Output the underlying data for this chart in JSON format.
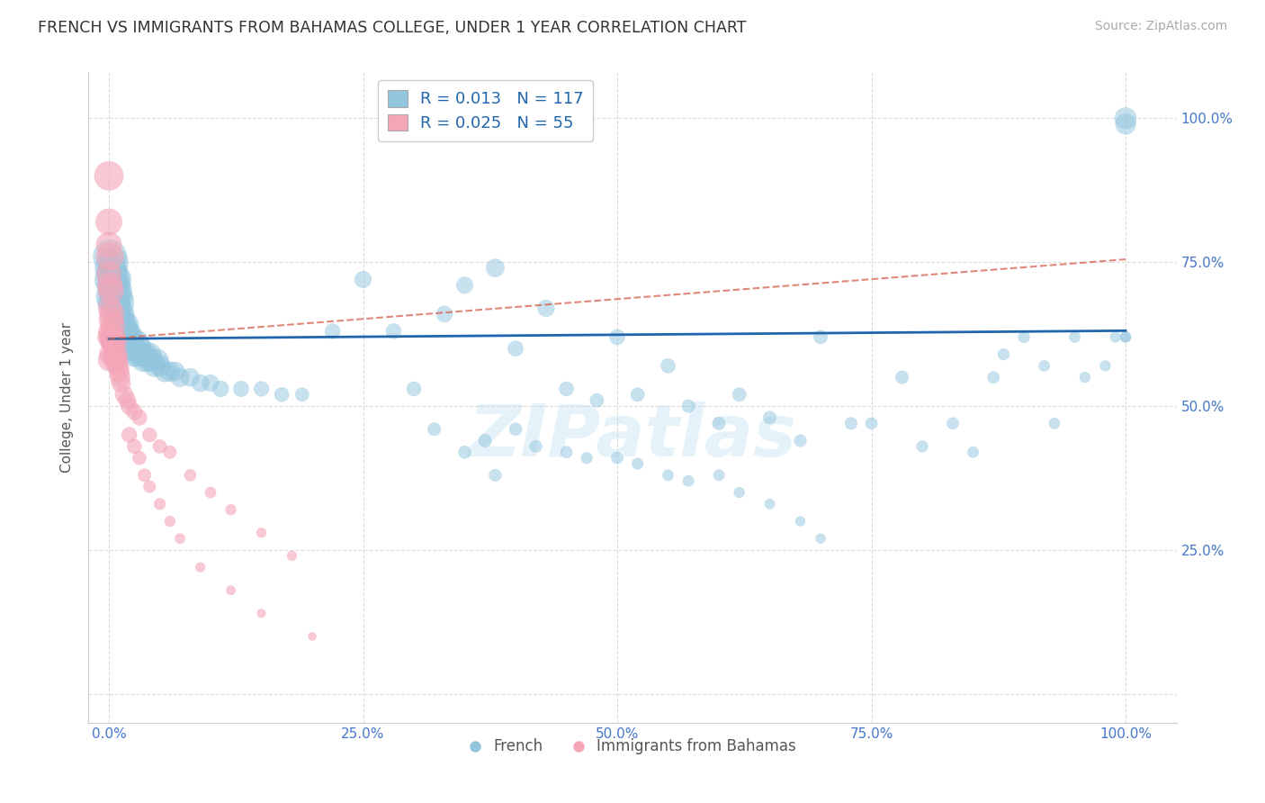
{
  "title": "FRENCH VS IMMIGRANTS FROM BAHAMAS COLLEGE, UNDER 1 YEAR CORRELATION CHART",
  "source_text": "Source: ZipAtlas.com",
  "ylabel": "College, Under 1 year",
  "watermark": "ZIPatlas",
  "legend_r1": "R = 0.013",
  "legend_n1": "N = 117",
  "legend_r2": "R = 0.025",
  "legend_n2": "N = 55",
  "blue_color": "#92c5de",
  "pink_color": "#f4a6b8",
  "blue_line_color": "#2166ac",
  "pink_line_color": "#d6604d",
  "title_color": "#333333",
  "tick_label_color": "#4477cc",
  "background_color": "#ffffff",
  "grid_color": "#cccccc",
  "blue_scatter_x": [
    0.001,
    0.001,
    0.002,
    0.002,
    0.003,
    0.003,
    0.003,
    0.004,
    0.004,
    0.005,
    0.005,
    0.006,
    0.006,
    0.007,
    0.007,
    0.008,
    0.009,
    0.009,
    0.01,
    0.01,
    0.011,
    0.011,
    0.012,
    0.013,
    0.014,
    0.015,
    0.016,
    0.016,
    0.017,
    0.018,
    0.019,
    0.02,
    0.021,
    0.022,
    0.023,
    0.024,
    0.025,
    0.027,
    0.028,
    0.03,
    0.032,
    0.034,
    0.036,
    0.038,
    0.04,
    0.042,
    0.045,
    0.048,
    0.05,
    0.055,
    0.06,
    0.065,
    0.07,
    0.08,
    0.09,
    0.1,
    0.11,
    0.13,
    0.15,
    0.17,
    0.19,
    0.22,
    0.25,
    0.28,
    0.3,
    0.33,
    0.35,
    0.38,
    0.4,
    0.43,
    0.45,
    0.48,
    0.5,
    0.52,
    0.55,
    0.57,
    0.6,
    0.62,
    0.65,
    0.68,
    0.7,
    0.73,
    0.75,
    0.78,
    0.8,
    0.83,
    0.85,
    0.87,
    0.88,
    0.9,
    0.92,
    0.93,
    0.95,
    0.96,
    0.98,
    0.99,
    1.0,
    1.0,
    1.0,
    1.0,
    0.37,
    0.4,
    0.42,
    0.45,
    0.47,
    0.5,
    0.52,
    0.55,
    0.57,
    0.6,
    0.62,
    0.65,
    0.68,
    0.7,
    0.32,
    0.35,
    0.38
  ],
  "blue_scatter_y": [
    0.76,
    0.72,
    0.74,
    0.69,
    0.73,
    0.71,
    0.68,
    0.75,
    0.7,
    0.72,
    0.69,
    0.71,
    0.68,
    0.72,
    0.69,
    0.7,
    0.69,
    0.67,
    0.68,
    0.65,
    0.66,
    0.64,
    0.65,
    0.63,
    0.64,
    0.62,
    0.64,
    0.62,
    0.63,
    0.61,
    0.62,
    0.61,
    0.62,
    0.6,
    0.61,
    0.6,
    0.59,
    0.61,
    0.59,
    0.6,
    0.59,
    0.58,
    0.59,
    0.58,
    0.59,
    0.58,
    0.57,
    0.58,
    0.57,
    0.56,
    0.56,
    0.56,
    0.55,
    0.55,
    0.54,
    0.54,
    0.53,
    0.53,
    0.53,
    0.52,
    0.52,
    0.63,
    0.72,
    0.63,
    0.53,
    0.66,
    0.71,
    0.74,
    0.6,
    0.67,
    0.53,
    0.51,
    0.62,
    0.52,
    0.57,
    0.5,
    0.47,
    0.52,
    0.48,
    0.44,
    0.62,
    0.47,
    0.47,
    0.55,
    0.43,
    0.47,
    0.42,
    0.55,
    0.59,
    0.62,
    0.57,
    0.47,
    0.62,
    0.55,
    0.57,
    0.62,
    1.0,
    0.62,
    0.62,
    0.99,
    0.44,
    0.46,
    0.43,
    0.42,
    0.41,
    0.41,
    0.4,
    0.38,
    0.37,
    0.38,
    0.35,
    0.33,
    0.3,
    0.27,
    0.46,
    0.42,
    0.38
  ],
  "blue_scatter_s": [
    120,
    100,
    110,
    95,
    105,
    95,
    85,
    100,
    90,
    105,
    90,
    95,
    85,
    100,
    85,
    95,
    90,
    80,
    95,
    80,
    85,
    75,
    80,
    75,
    80,
    70,
    80,
    70,
    75,
    68,
    72,
    68,
    70,
    65,
    68,
    62,
    65,
    68,
    62,
    65,
    62,
    58,
    60,
    56,
    58,
    55,
    52,
    50,
    48,
    45,
    42,
    40,
    38,
    35,
    32,
    30,
    28,
    26,
    24,
    22,
    20,
    25,
    30,
    25,
    22,
    28,
    30,
    35,
    25,
    30,
    22,
    20,
    25,
    20,
    22,
    18,
    18,
    20,
    18,
    16,
    20,
    16,
    15,
    18,
    14,
    15,
    13,
    15,
    14,
    14,
    13,
    13,
    13,
    12,
    12,
    12,
    50,
    12,
    12,
    45,
    18,
    17,
    16,
    15,
    14,
    15,
    14,
    13,
    13,
    13,
    12,
    11,
    10,
    10,
    18,
    17,
    16
  ],
  "pink_scatter_x": [
    0.0,
    0.0,
    0.0,
    0.0,
    0.001,
    0.001,
    0.001,
    0.002,
    0.002,
    0.002,
    0.003,
    0.003,
    0.004,
    0.004,
    0.005,
    0.005,
    0.006,
    0.006,
    0.007,
    0.008,
    0.009,
    0.01,
    0.011,
    0.012,
    0.015,
    0.018,
    0.02,
    0.025,
    0.03,
    0.04,
    0.05,
    0.06,
    0.08,
    0.1,
    0.12,
    0.15,
    0.18,
    0.0,
    0.0,
    0.001,
    0.001,
    0.002,
    0.003,
    0.02,
    0.025,
    0.03,
    0.035,
    0.04,
    0.05,
    0.06,
    0.07,
    0.09,
    0.12,
    0.15,
    0.2
  ],
  "pink_scatter_y": [
    0.9,
    0.82,
    0.78,
    0.73,
    0.76,
    0.71,
    0.67,
    0.7,
    0.65,
    0.62,
    0.66,
    0.62,
    0.64,
    0.61,
    0.62,
    0.59,
    0.61,
    0.58,
    0.59,
    0.58,
    0.57,
    0.56,
    0.55,
    0.54,
    0.52,
    0.51,
    0.5,
    0.49,
    0.48,
    0.45,
    0.43,
    0.42,
    0.38,
    0.35,
    0.32,
    0.28,
    0.24,
    0.62,
    0.58,
    0.63,
    0.59,
    0.61,
    0.62,
    0.45,
    0.43,
    0.41,
    0.38,
    0.36,
    0.33,
    0.3,
    0.27,
    0.22,
    0.18,
    0.14,
    0.1
  ],
  "pink_scatter_s": [
    90,
    75,
    70,
    65,
    80,
    68,
    60,
    70,
    62,
    58,
    65,
    60,
    62,
    55,
    60,
    55,
    58,
    52,
    55,
    50,
    48,
    45,
    42,
    38,
    35,
    32,
    30,
    28,
    25,
    22,
    20,
    18,
    15,
    13,
    12,
    10,
    10,
    55,
    50,
    55,
    48,
    45,
    42,
    25,
    22,
    20,
    18,
    16,
    14,
    12,
    11,
    10,
    9,
    8,
    7
  ],
  "xlim": [
    -0.02,
    1.05
  ],
  "ylim": [
    -0.05,
    1.08
  ],
  "xticks": [
    0.0,
    0.25,
    0.5,
    0.75,
    1.0
  ],
  "xtick_labels": [
    "0.0%",
    "25.0%",
    "50.0%",
    "75.0%",
    "100.0%"
  ],
  "ytick_positions": [
    0.0,
    0.25,
    0.5,
    0.75,
    1.0
  ],
  "ytick_labels": [
    "",
    "25.0%",
    "50.0%",
    "75.0%",
    "100.0%"
  ],
  "blue_trend_x": [
    0.0,
    1.0
  ],
  "blue_trend_y": [
    0.617,
    0.631
  ],
  "pink_trend_x": [
    0.0,
    1.0
  ],
  "pink_trend_y": [
    0.617,
    0.755
  ]
}
